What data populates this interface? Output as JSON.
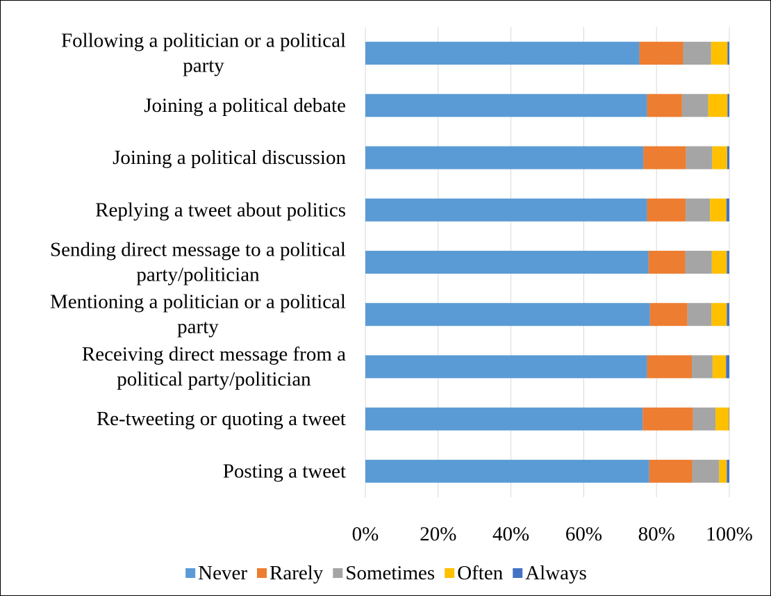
{
  "chart_data": {
    "type": "bar",
    "orientation": "horizontal",
    "stacked": "percent",
    "title": "",
    "xlabel": "",
    "ylabel": "",
    "xlim": [
      0,
      100
    ],
    "grid": true,
    "legend_position": "bottom",
    "x_ticks": [
      "0%",
      "20%",
      "40%",
      "60%",
      "80%",
      "100%"
    ],
    "categories": [
      [
        "Following a politician or a political",
        "party"
      ],
      [
        "Joining a political debate"
      ],
      [
        "Joining a political discussion"
      ],
      [
        "Replying a tweet about politics"
      ],
      [
        "Sending direct message to a political",
        "party/politician"
      ],
      [
        "Mentioning a politician or a political",
        "party"
      ],
      [
        "Receiving direct message from a",
        "political party/politician"
      ],
      [
        "Re-tweeting or quoting a tweet"
      ],
      [
        "Posting a tweet"
      ]
    ],
    "series": [
      {
        "name": "Never",
        "color": "#5B9BD5",
        "values": [
          75.3,
          77.4,
          76.4,
          77.4,
          77.8,
          78.2,
          77.4,
          76.2,
          78.0
        ]
      },
      {
        "name": "Rarely",
        "color": "#ED7D31",
        "values": [
          12.0,
          9.6,
          11.7,
          10.6,
          10.1,
          10.3,
          12.3,
          13.8,
          11.8
        ]
      },
      {
        "name": "Sometimes",
        "color": "#A5A5A5",
        "values": [
          7.7,
          7.2,
          7.2,
          6.7,
          7.3,
          6.6,
          5.7,
          6.2,
          7.4
        ]
      },
      {
        "name": "Often",
        "color": "#FFC000",
        "values": [
          4.5,
          5.3,
          4.1,
          4.5,
          4.1,
          4.2,
          3.7,
          3.7,
          2.1
        ]
      },
      {
        "name": "Always",
        "color": "#4472C4",
        "values": [
          0.5,
          0.5,
          0.6,
          0.8,
          0.7,
          0.7,
          0.9,
          0.1,
          0.7
        ]
      }
    ]
  }
}
